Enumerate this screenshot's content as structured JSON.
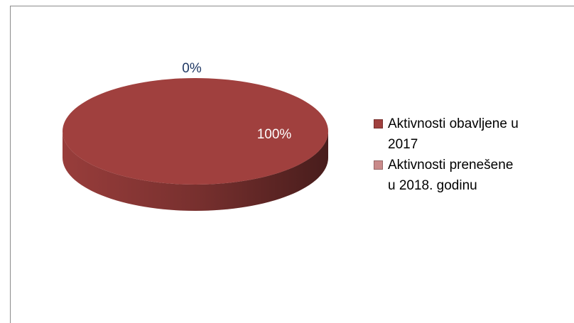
{
  "chart_data": {
    "type": "pie",
    "categories": [
      "Aktivnosti obavljene u 2017",
      "Aktivnosti prenešene u 2018. godinu"
    ],
    "values": [
      100,
      0
    ],
    "value_labels": [
      "100%",
      "0%"
    ],
    "colors": [
      "#a0403e",
      "#c98a8a"
    ],
    "legend": "right"
  }
}
